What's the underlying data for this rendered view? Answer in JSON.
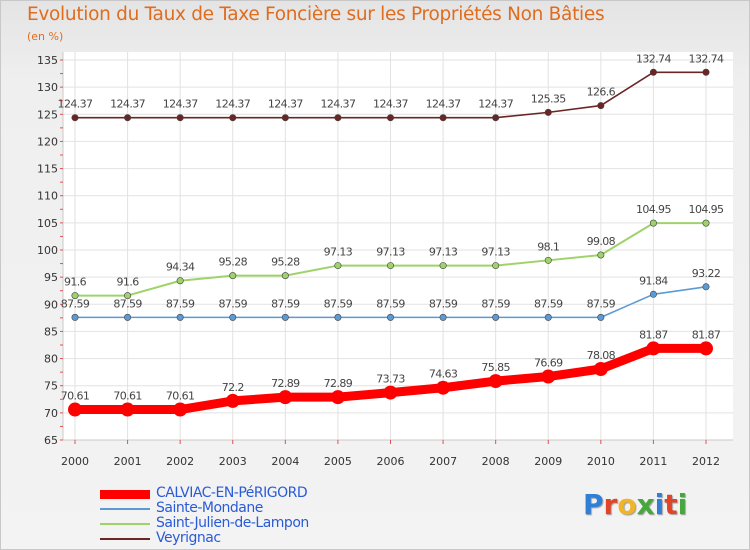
{
  "chart_data": {
    "type": "line",
    "title": "Evolution du Taux de Taxe Foncière sur les Propriétés Non Bâties",
    "unit_label": "(en %)",
    "x": [
      "2000",
      "2001",
      "2002",
      "2003",
      "2004",
      "2005",
      "2006",
      "2007",
      "2008",
      "2009",
      "2010",
      "2011",
      "2012"
    ],
    "ylim": [
      65,
      135
    ],
    "yticks": [
      65,
      70,
      75,
      80,
      85,
      90,
      95,
      100,
      105,
      110,
      115,
      120,
      125,
      130,
      135
    ],
    "grid": true,
    "legend_position": "bottom-left",
    "series": [
      {
        "name": "CALVIAC-EN-PéRIGORD",
        "color": "#ff0000",
        "values": [
          70.61,
          70.61,
          70.61,
          72.2,
          72.89,
          72.89,
          73.73,
          74.63,
          75.85,
          76.69,
          78.08,
          81.87,
          81.87
        ],
        "labels": [
          "70.61",
          "70.61",
          "70.61",
          "72.2",
          "72.89",
          "72.89",
          "73.73",
          "74.63",
          "75.85",
          "76.69",
          "78.08",
          "81.87",
          "81.87"
        ]
      },
      {
        "name": "Sainte-Mondane",
        "color": "#5b9bd5",
        "values": [
          87.59,
          87.59,
          87.59,
          87.59,
          87.59,
          87.59,
          87.59,
          87.59,
          87.59,
          87.59,
          87.59,
          91.84,
          93.22
        ],
        "labels": [
          "87.59",
          "87.59",
          "87.59",
          "87.59",
          "87.59",
          "87.59",
          "87.59",
          "87.59",
          "87.59",
          "87.59",
          "87.59",
          "91.84",
          "93.22"
        ]
      },
      {
        "name": "Saint-Julien-de-Lampon",
        "color": "#9ed36a",
        "values": [
          91.6,
          91.6,
          94.34,
          95.28,
          95.28,
          97.13,
          97.13,
          97.13,
          97.13,
          98.1,
          99.08,
          104.95,
          104.95
        ],
        "labels": [
          "91.6",
          "91.6",
          "94.34",
          "95.28",
          "95.28",
          "97.13",
          "97.13",
          "97.13",
          "97.13",
          "98.1",
          "99.08",
          "104.95",
          "104.95"
        ]
      },
      {
        "name": "Veyrignac",
        "color": "#6b2525",
        "values": [
          124.37,
          124.37,
          124.37,
          124.37,
          124.37,
          124.37,
          124.37,
          124.37,
          124.37,
          125.35,
          126.6,
          132.74,
          132.74
        ],
        "labels": [
          "124.37",
          "124.37",
          "124.37",
          "124.37",
          "124.37",
          "124.37",
          "124.37",
          "124.37",
          "124.37",
          "125.35",
          "126.6",
          "132.74",
          "132.74"
        ]
      }
    ]
  },
  "logo": {
    "letters": [
      "P",
      "r",
      "o",
      "x",
      "i",
      "t",
      "i"
    ],
    "colors": [
      "#2f7fd6",
      "#e0452a",
      "#f0b429",
      "#46a83c",
      "#2f7fd6",
      "#e0452a",
      "#46a83c"
    ]
  }
}
